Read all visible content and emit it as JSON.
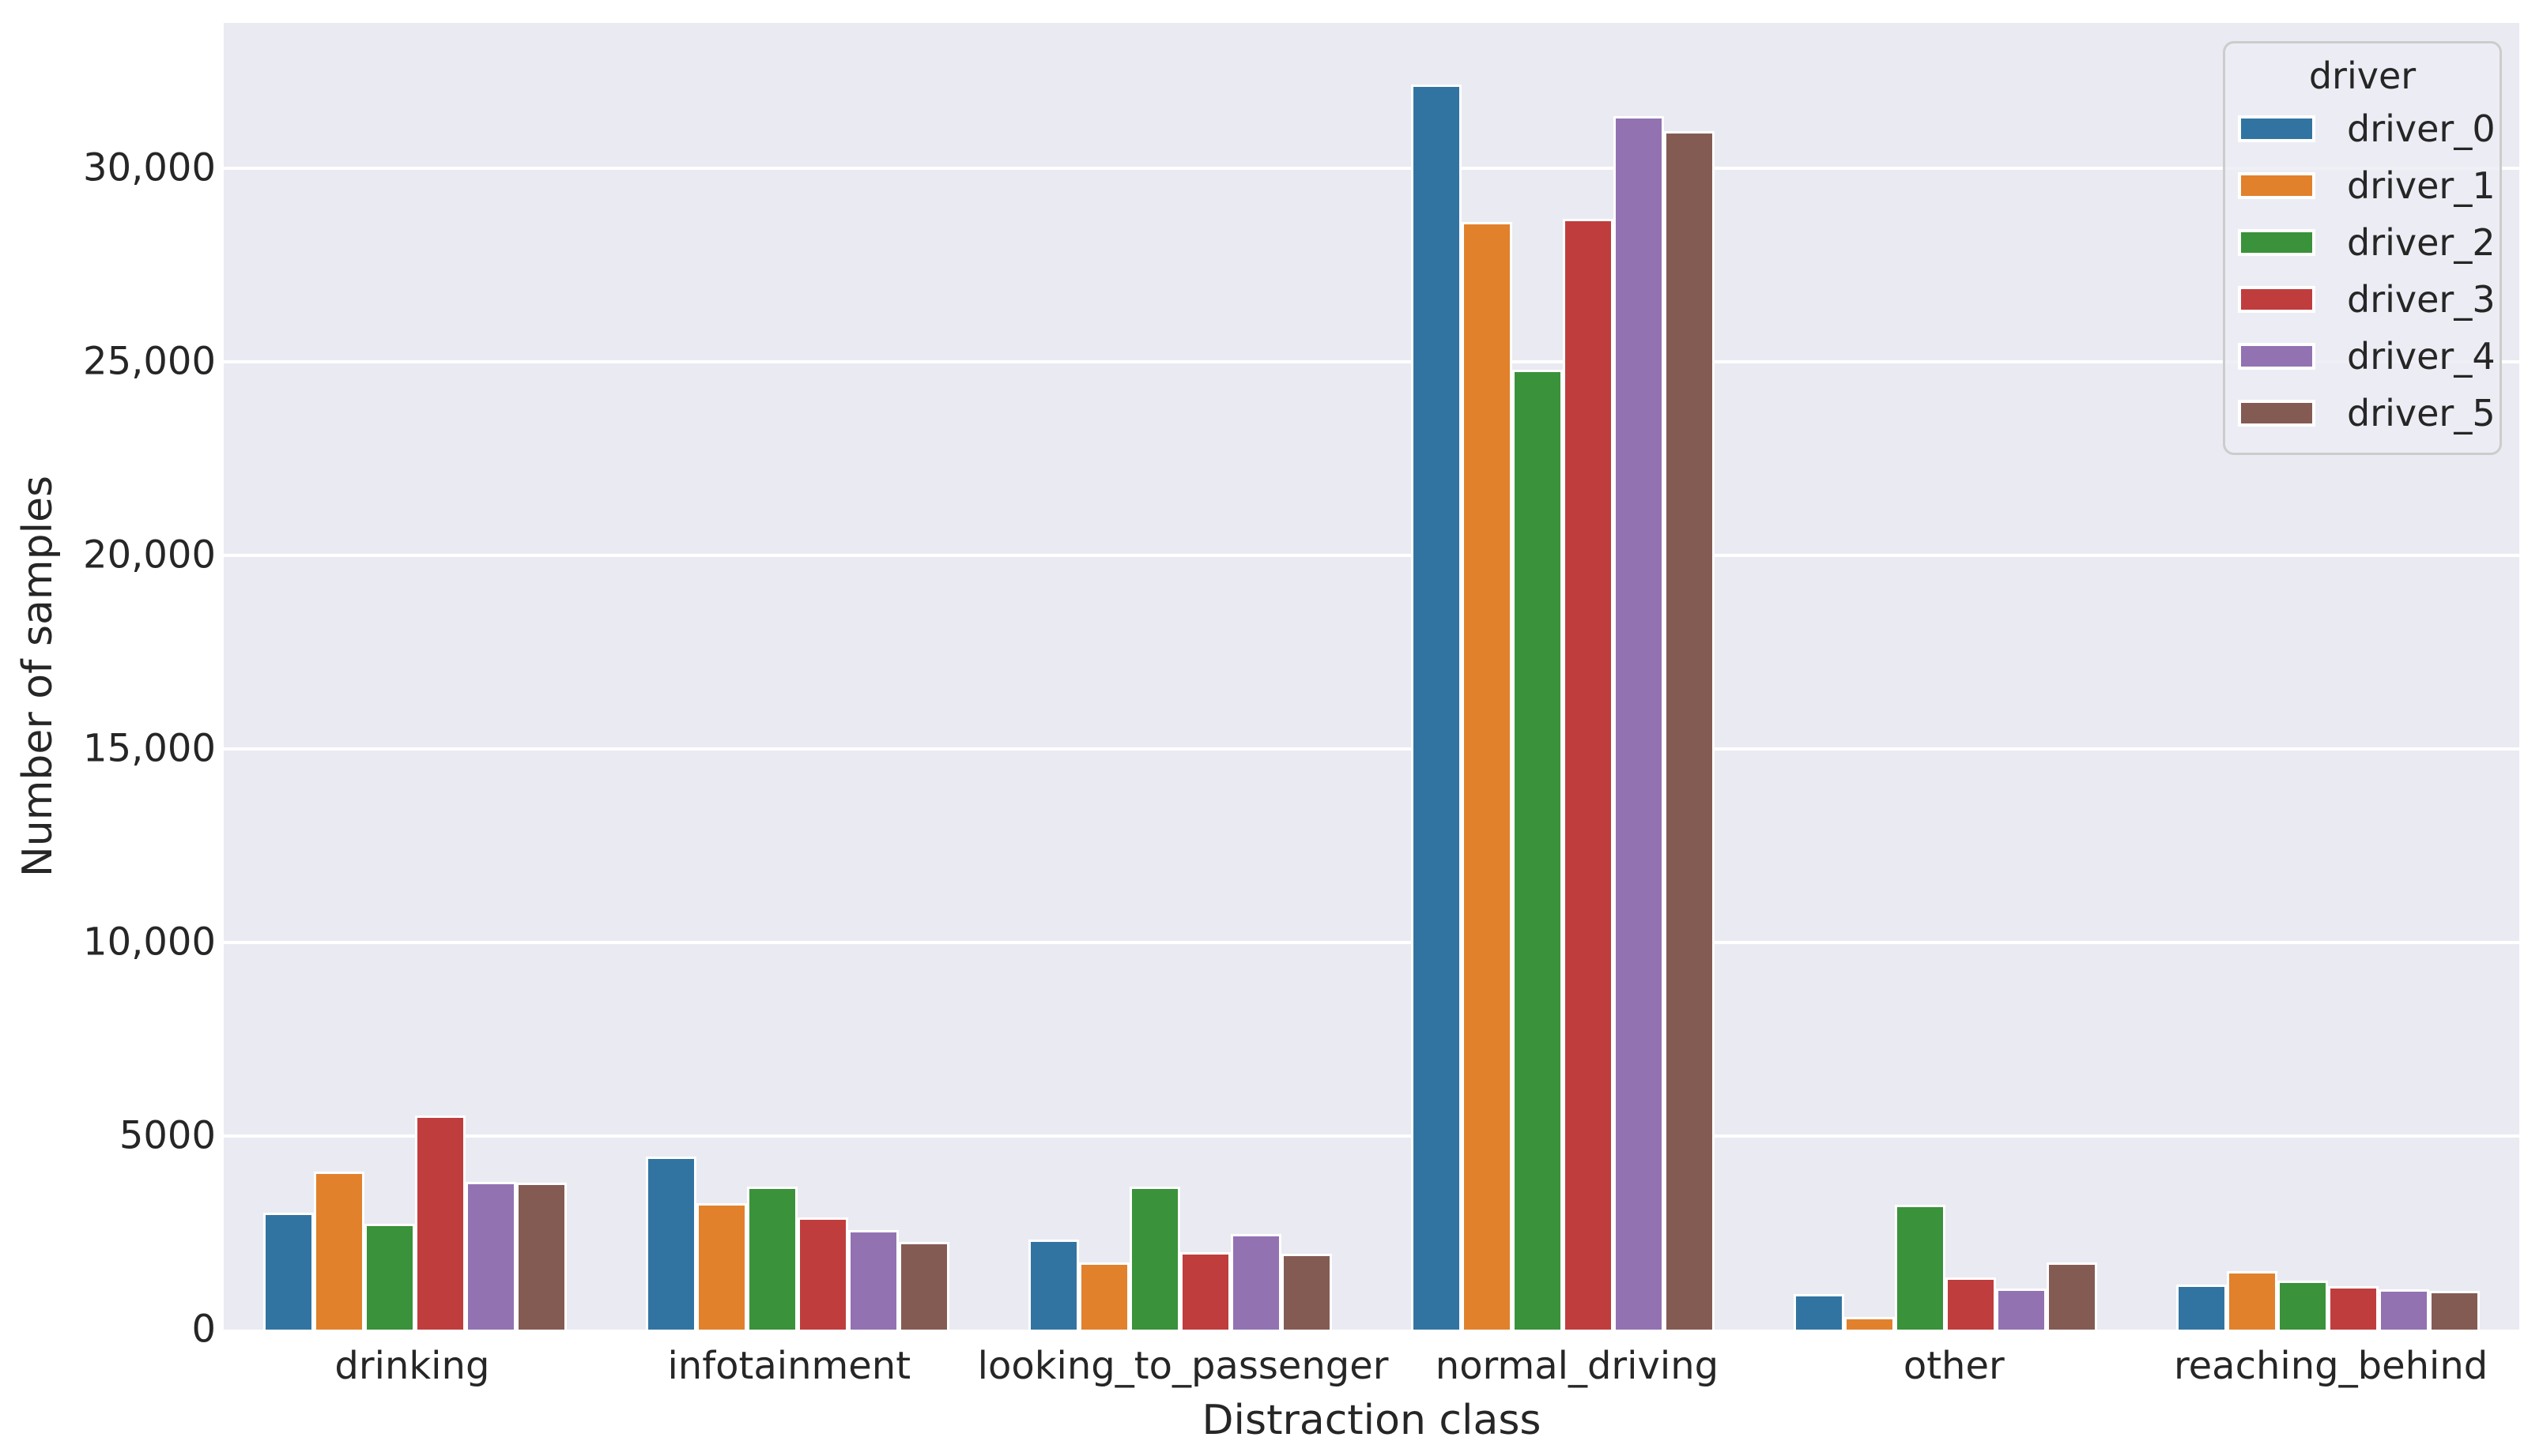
{
  "chart_data": {
    "type": "bar",
    "title": "",
    "xlabel": "Distraction class",
    "ylabel": "Number of samples",
    "plot_background": "#eaeaf2",
    "gridline_color": "#ffffff",
    "text_color": "#262626",
    "ylim": [
      0,
      33750
    ],
    "yticks": [
      {
        "value": 0,
        "label": "0"
      },
      {
        "value": 5000,
        "label": "5000"
      },
      {
        "value": 10000,
        "label": "10,000"
      },
      {
        "value": 15000,
        "label": "15,000"
      },
      {
        "value": 20000,
        "label": "20,000"
      },
      {
        "value": 25000,
        "label": "25,000"
      },
      {
        "value": 30000,
        "label": "30,000"
      }
    ],
    "categories": [
      "drinking",
      "infotainment",
      "looking_to_passenger",
      "normal_driving",
      "other",
      "reaching_behind"
    ],
    "series": [
      {
        "name": "driver_0",
        "color": "#3274a1",
        "values": [
          3020,
          4470,
          2330,
          32150,
          920,
          1160
        ]
      },
      {
        "name": "driver_1",
        "color": "#e1812c",
        "values": [
          4080,
          3270,
          1740,
          28600,
          330,
          1510
        ]
      },
      {
        "name": "driver_2",
        "color": "#3a923a",
        "values": [
          2740,
          3690,
          3690,
          24800,
          3220,
          1270
        ]
      },
      {
        "name": "driver_3",
        "color": "#c03d3e",
        "values": [
          5530,
          2900,
          2000,
          28700,
          1350,
          1120
        ]
      },
      {
        "name": "driver_4",
        "color": "#9372b2",
        "values": [
          3820,
          2570,
          2470,
          31350,
          1060,
          1040
        ]
      },
      {
        "name": "driver_5",
        "color": "#845b53",
        "values": [
          3800,
          2270,
          1960,
          30950,
          1740,
          1000
        ]
      }
    ],
    "legend": {
      "title": "driver",
      "position": "upper right",
      "entries": [
        "driver_0",
        "driver_1",
        "driver_2",
        "driver_3",
        "driver_4",
        "driver_5"
      ]
    }
  }
}
